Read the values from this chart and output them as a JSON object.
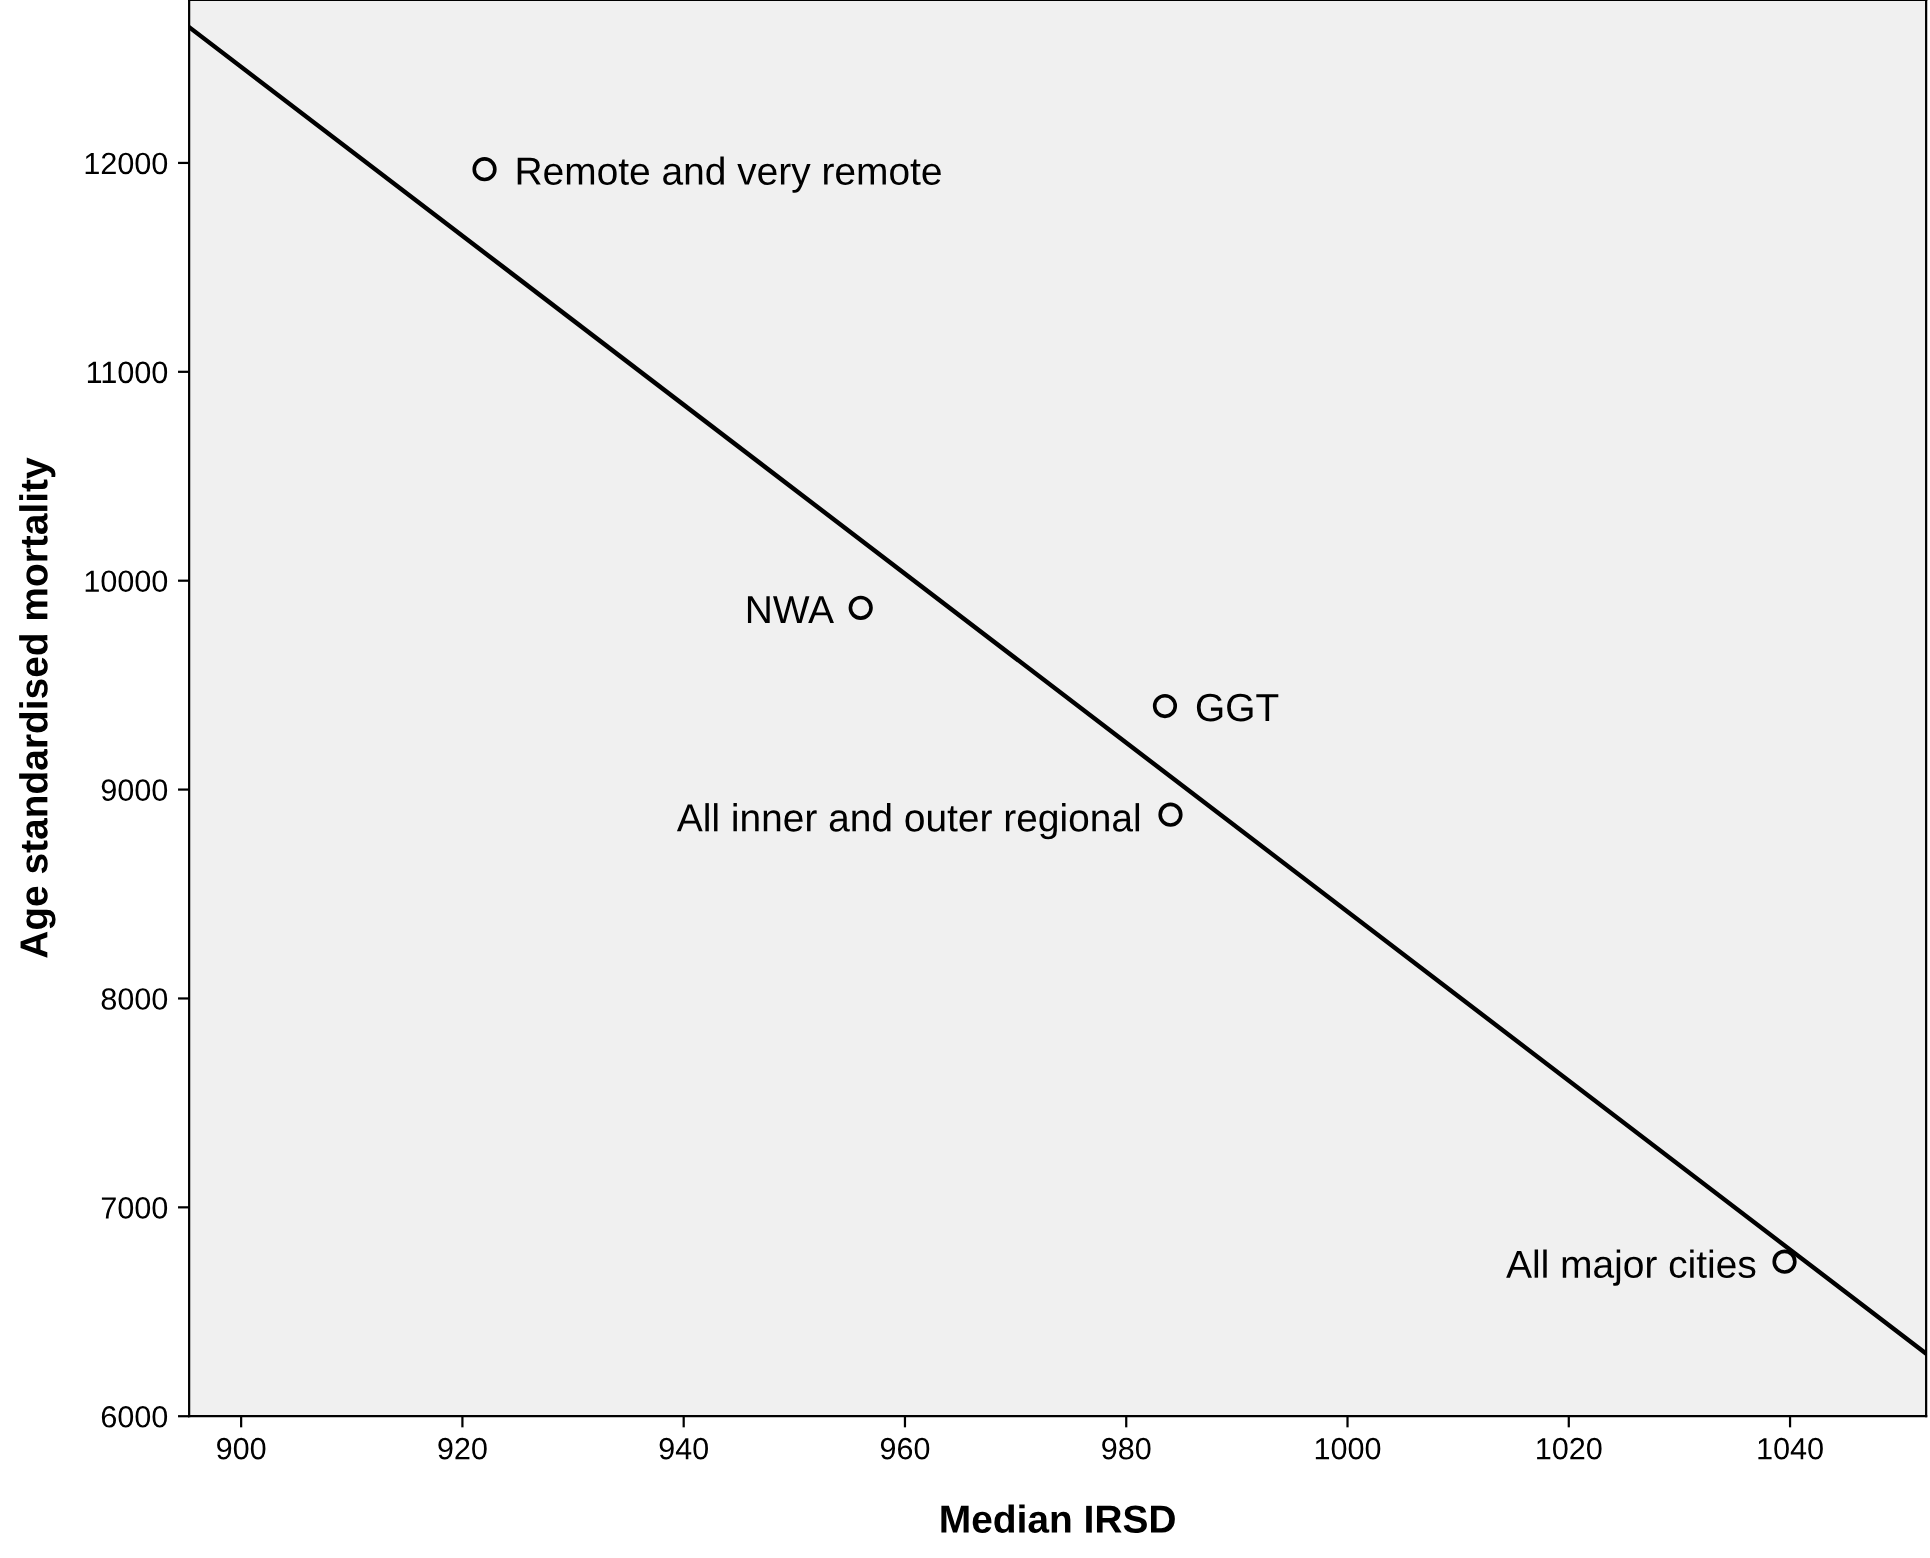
{
  "chart_data": {
    "type": "scatter",
    "xlabel": "Median IRSD",
    "ylabel": "Age standardised mortality",
    "series": [
      {
        "color": "#000000",
        "marker": "circle",
        "x": [
          922,
          956,
          983.5,
          984,
          1039.5
        ],
        "values": [
          11970,
          9870,
          9400,
          8880,
          6740
        ]
      },
      {
        "type": "line",
        "color": "#000000",
        "marker": "none",
        "line_style": "solid",
        "x": [
          895.3,
          1052.3
        ],
        "values": [
          12650,
          6300
        ]
      }
    ],
    "annotations": [
      {
        "text": "Remote and very remote",
        "x": 922.2,
        "y": 11971
      },
      {
        "text": "NWA",
        "x": 956.1,
        "y": 9872
      },
      {
        "text": "GGT",
        "x": 983.7,
        "y": 9403
      },
      {
        "text": "All inner and outer regional",
        "x": 983.9,
        "y": 8875
      },
      {
        "text": "All major cities",
        "x": 1039.5,
        "y": 6738
      }
    ],
    "xlim": [
      895.3,
      1052.3
    ],
    "ylim": [
      6000,
      12780
    ],
    "xticks": [
      900,
      920,
      940,
      960,
      980,
      1000,
      1020,
      1040
    ],
    "yticks": [
      6000,
      7000,
      8000,
      9000,
      10000,
      11000,
      12000
    ],
    "grid": false,
    "legend": false
  }
}
